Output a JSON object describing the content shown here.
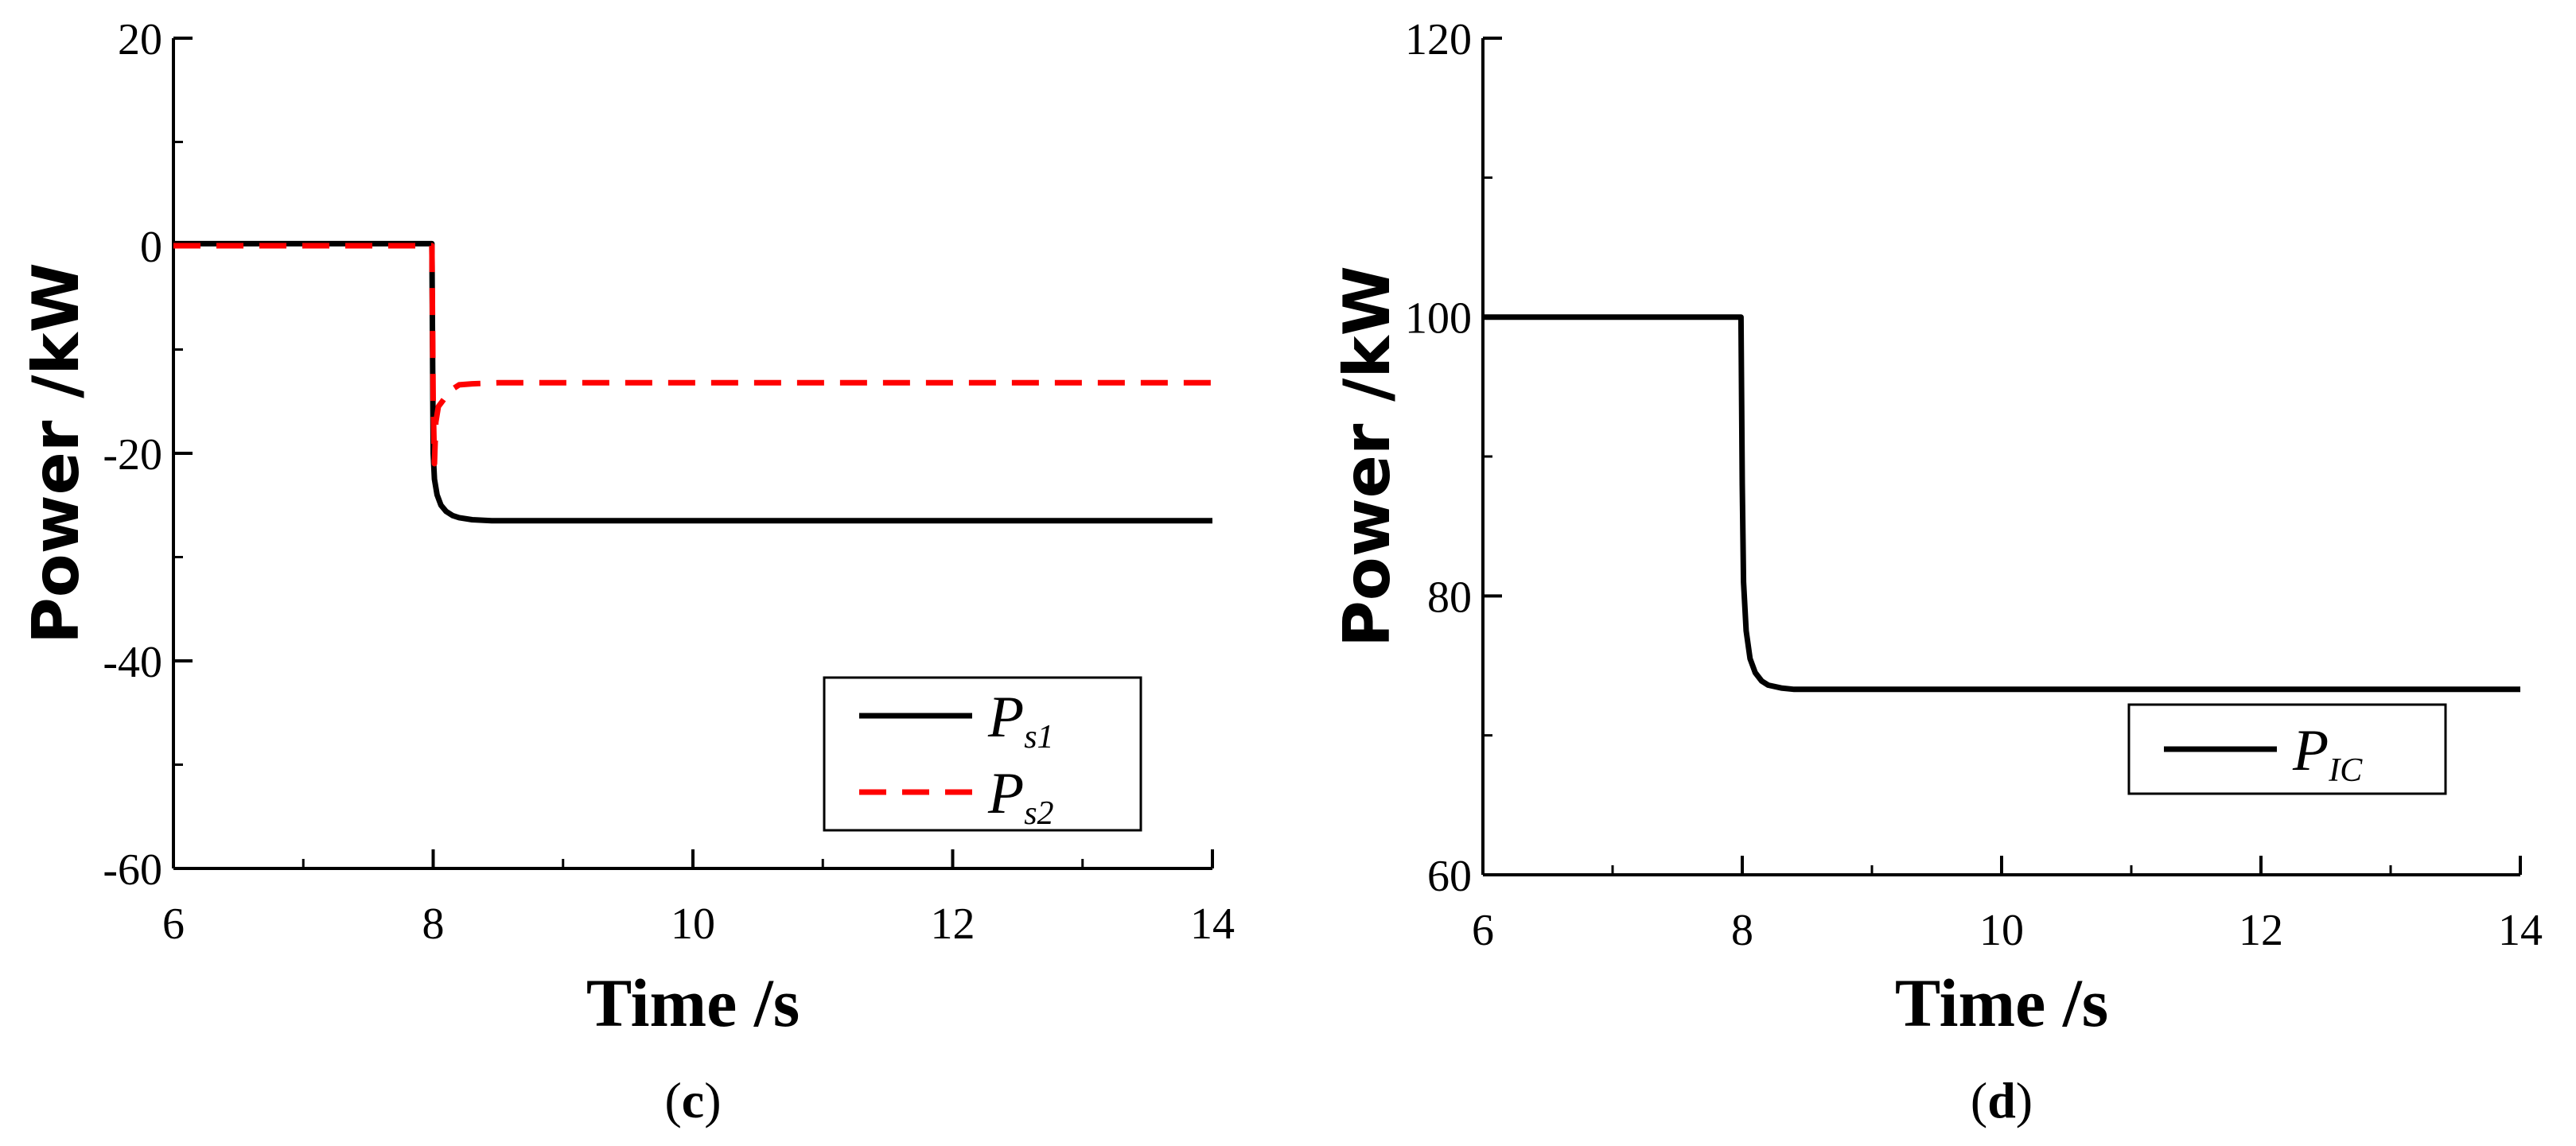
{
  "chart_data": [
    {
      "type": "line",
      "panel_label": "c",
      "title": "",
      "xlabel": "Time /s",
      "ylabel": "Power /kW",
      "xlim": [
        6,
        14
      ],
      "ylim": [
        -60,
        20
      ],
      "xticks": [
        6,
        8,
        10,
        12,
        14
      ],
      "yticks": [
        -60,
        -40,
        -20,
        0,
        20
      ],
      "grid": false,
      "legend_position": "lower-right",
      "series": [
        {
          "name": "Ps1",
          "legend_main": "P",
          "legend_sub": "s1",
          "color": "#000000",
          "dash": "solid",
          "x": [
            6,
            7.99,
            8.0,
            8.01,
            8.03,
            8.06,
            8.1,
            8.15,
            8.2,
            8.3,
            8.45,
            8.7,
            9,
            10,
            12,
            14
          ],
          "y": [
            0.2,
            0.2,
            -20,
            -22.5,
            -24,
            -25,
            -25.6,
            -26,
            -26.2,
            -26.4,
            -26.5,
            -26.5,
            -26.5,
            -26.5,
            -26.5,
            -26.5
          ]
        },
        {
          "name": "Ps2",
          "legend_main": "P",
          "legend_sub": "s2",
          "color": "#ff0000",
          "dash": "dashed",
          "x": [
            6,
            7.99,
            8.0,
            8.01,
            8.02,
            8.04,
            8.07,
            8.1,
            8.15,
            8.2,
            8.3,
            8.5,
            9,
            10,
            12,
            14
          ],
          "y": [
            0,
            0,
            -15,
            -21,
            -17,
            -15.5,
            -15,
            -14.5,
            -13.8,
            -13.4,
            -13.3,
            -13.2,
            -13.2,
            -13.2,
            -13.2,
            -13.2
          ]
        }
      ]
    },
    {
      "type": "line",
      "panel_label": "d",
      "title": "",
      "xlabel": "Time /s",
      "ylabel": "Power /kW",
      "xlim": [
        6,
        14
      ],
      "ylim": [
        60,
        120
      ],
      "xticks": [
        6,
        8,
        10,
        12,
        14
      ],
      "yticks": [
        60,
        80,
        100,
        120
      ],
      "grid": false,
      "legend_position": "lower-right",
      "series": [
        {
          "name": "PIC",
          "legend_main": "P",
          "legend_sub": "IC",
          "color": "#000000",
          "dash": "solid",
          "x": [
            6,
            7.99,
            8.0,
            8.01,
            8.03,
            8.06,
            8.1,
            8.15,
            8.2,
            8.3,
            8.4,
            8.6,
            9,
            10,
            12,
            14
          ],
          "y": [
            100,
            100,
            88,
            81,
            77.5,
            75.5,
            74.5,
            73.9,
            73.6,
            73.4,
            73.3,
            73.3,
            73.3,
            73.3,
            73.3,
            73.3
          ]
        }
      ]
    }
  ]
}
